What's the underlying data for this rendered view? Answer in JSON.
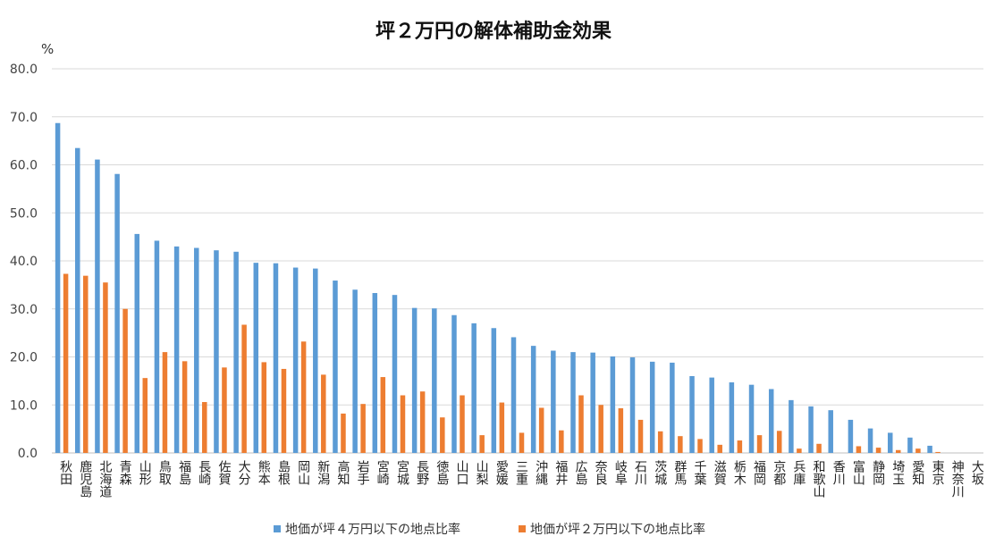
{
  "chart_data": {
    "type": "bar",
    "title": "坪２万円の解体補助金効果",
    "ylabel": "%",
    "ylim": [
      0,
      80
    ],
    "yticks": [
      "0.0",
      "10.0",
      "20.0",
      "30.0",
      "40.0",
      "50.0",
      "60.0",
      "70.0",
      "80.0"
    ],
    "grid": true,
    "legend_position": "bottom",
    "colors": [
      "#5b9bd5",
      "#ed7d31"
    ],
    "categories": [
      "秋田",
      "鹿児島",
      "北海道",
      "青森",
      "山形",
      "鳥取",
      "福島",
      "長崎",
      "佐賀",
      "大分",
      "熊本",
      "島根",
      "岡山",
      "新潟",
      "高知",
      "岩手",
      "宮崎",
      "宮城",
      "長野",
      "徳島",
      "山口",
      "山梨",
      "愛媛",
      "三重",
      "沖縄",
      "福井",
      "広島",
      "奈良",
      "岐阜",
      "石川",
      "茨城",
      "群馬",
      "千葉",
      "滋賀",
      "栃木",
      "福岡",
      "京都",
      "兵庫",
      "和歌山",
      "香川",
      "富山",
      "静岡",
      "埼玉",
      "愛知",
      "東京",
      "神奈川",
      "大坂"
    ],
    "series": [
      {
        "name": "地価が坪４万円以下の地点比率",
        "values": [
          68.7,
          63.5,
          61.1,
          58.1,
          45.6,
          44.2,
          43.0,
          42.7,
          42.2,
          41.9,
          39.6,
          39.5,
          38.6,
          38.4,
          35.9,
          34.0,
          33.3,
          32.9,
          30.2,
          30.1,
          28.7,
          27.0,
          26.0,
          24.1,
          22.3,
          21.3,
          21.0,
          20.9,
          20.1,
          19.9,
          19.0,
          18.8,
          16.0,
          15.7,
          14.7,
          14.2,
          13.3,
          11.0,
          9.7,
          8.9,
          6.9,
          5.1,
          4.2,
          3.2,
          1.5,
          0,
          0
        ]
      },
      {
        "name": "地価が坪２万円以下の地点比率",
        "values": [
          37.3,
          36.9,
          35.5,
          30.0,
          15.6,
          21.0,
          19.1,
          10.6,
          17.8,
          26.7,
          18.9,
          17.5,
          23.2,
          16.3,
          8.2,
          10.2,
          15.8,
          12.0,
          12.8,
          7.4,
          12.0,
          3.7,
          10.5,
          4.2,
          9.4,
          4.7,
          12.0,
          10.0,
          9.3,
          6.9,
          4.5,
          3.5,
          2.9,
          1.7,
          2.6,
          3.7,
          4.6,
          0.9,
          1.9,
          0,
          1.4,
          1.1,
          0.6,
          0.9,
          0.2,
          0,
          0
        ]
      }
    ]
  }
}
